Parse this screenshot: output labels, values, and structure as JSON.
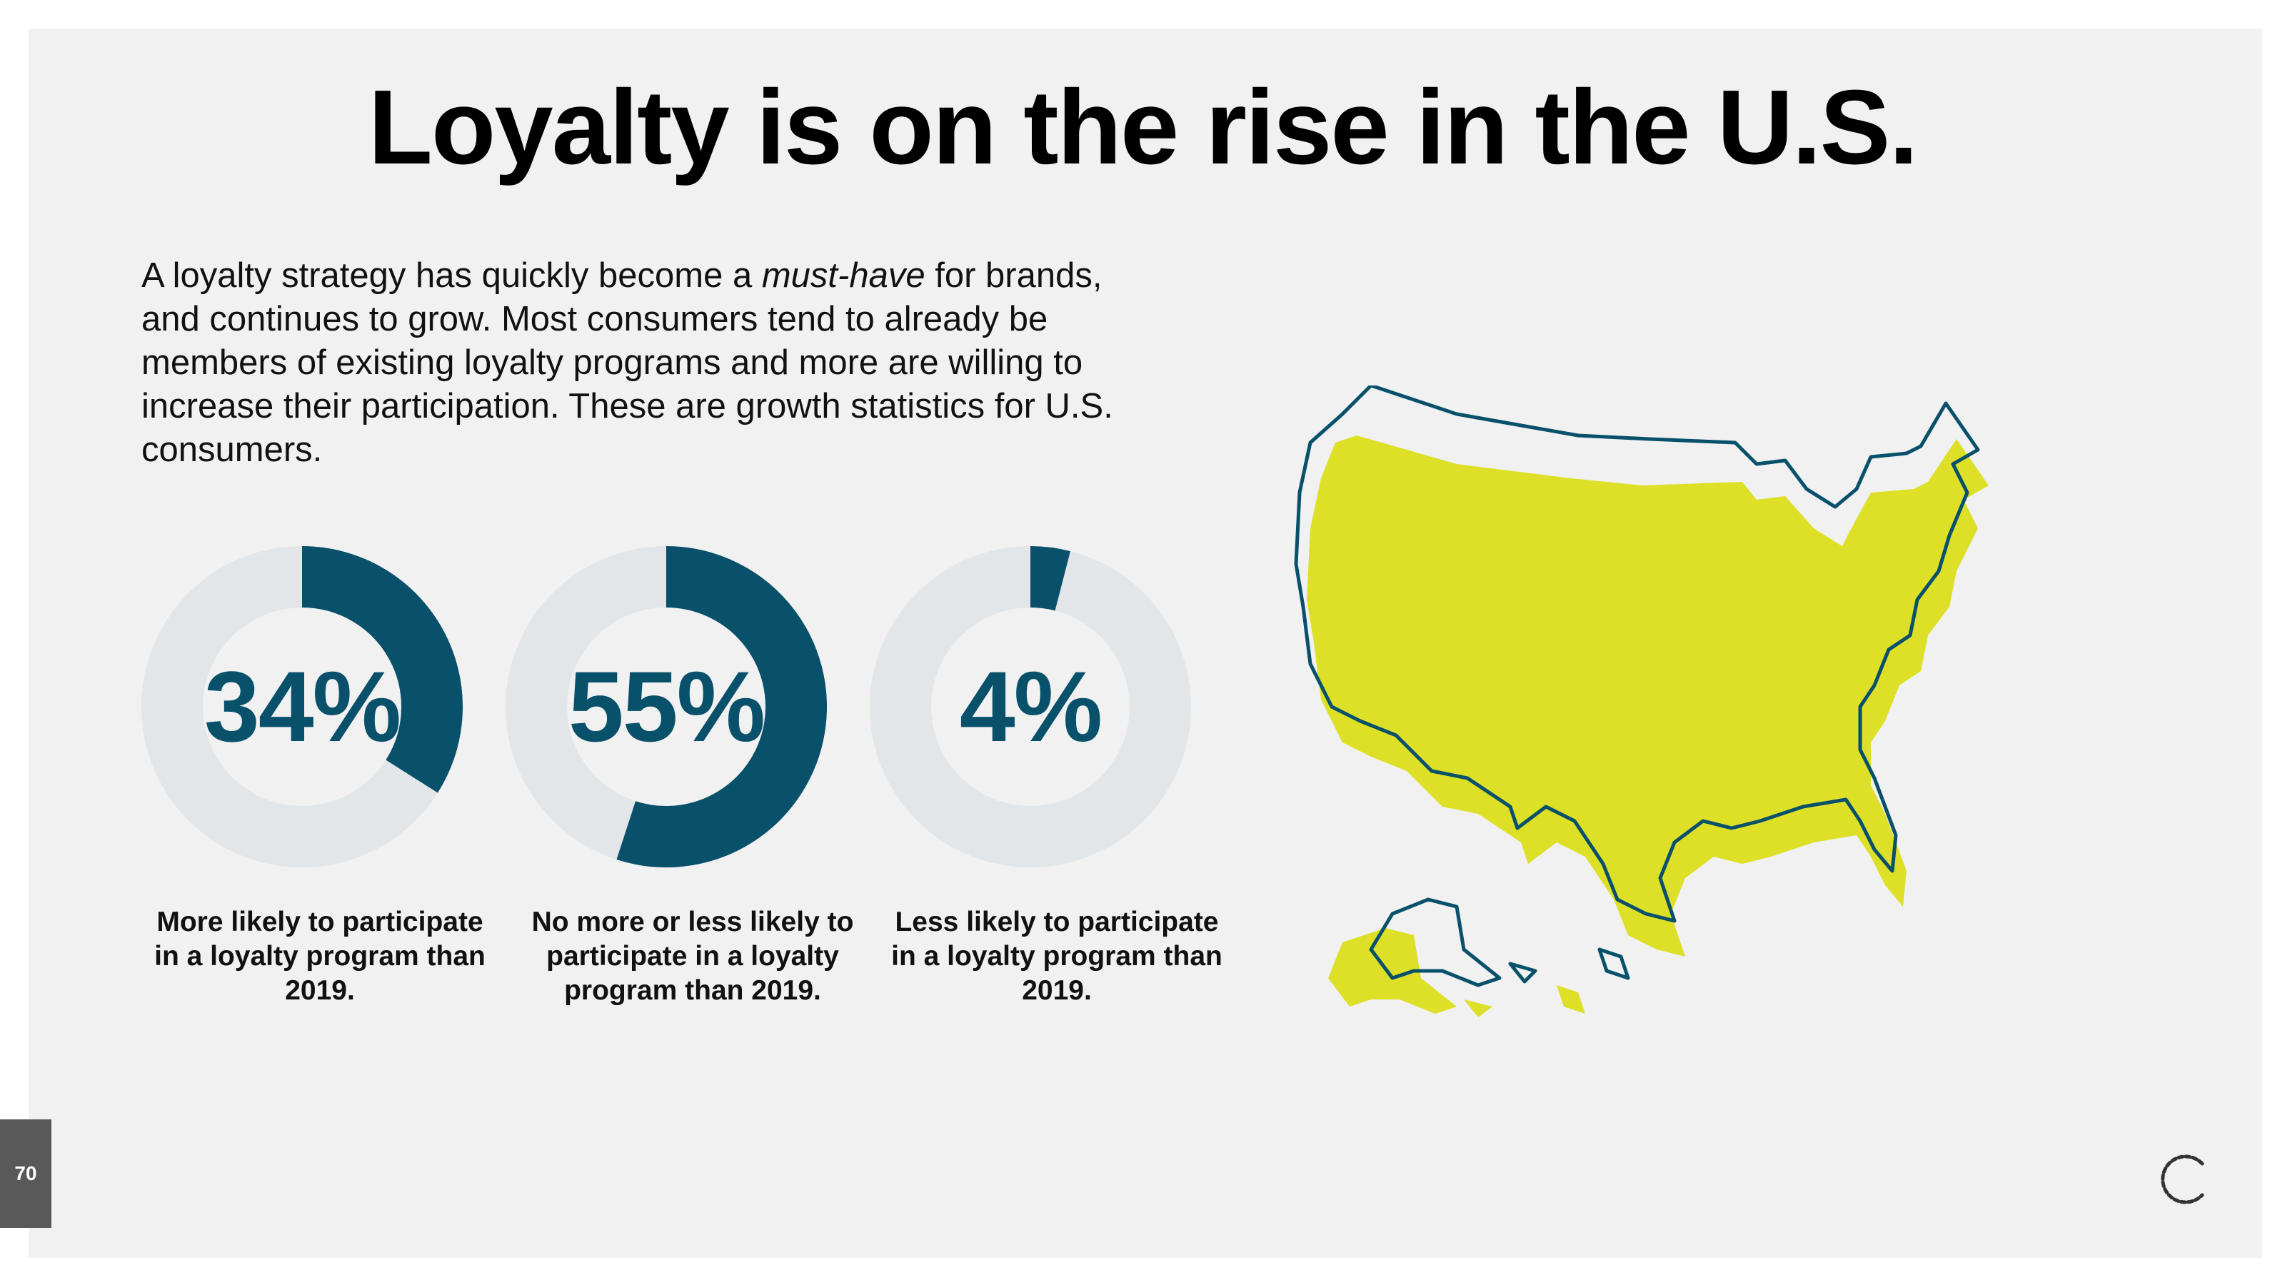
{
  "slide": {
    "title": "Loyalty is on the rise in the U.S.",
    "intro": {
      "before": "A loyalty strategy has quickly become a ",
      "emphasis": "must-have",
      "after": " for brands, and continues to grow.  Most consumers tend to already be members of existing loyalty programs and more are willing to increase their participation. These are growth statistics for U.S. consumers."
    },
    "page_number": "70"
  },
  "colors": {
    "accent": "#09506b",
    "track": "#e2e6e8",
    "map_fill": "#dde027",
    "map_outline": "#09506b",
    "background": "#f0f1f0"
  },
  "chart_data": [
    {
      "type": "pie",
      "style": "donut",
      "value": 34,
      "label": "34%",
      "caption": "More likely to participate in a loyalty program than 2019."
    },
    {
      "type": "pie",
      "style": "donut",
      "value": 55,
      "label": "55%",
      "caption": "No more or less likely to participate in a loyalty program than 2019."
    },
    {
      "type": "pie",
      "style": "donut",
      "value": 4,
      "label": "4%",
      "caption": "Less likely to participate in a loyalty program than 2019."
    }
  ],
  "icons": {
    "map": "us-map-icon",
    "logo": "brand-logo-icon"
  }
}
